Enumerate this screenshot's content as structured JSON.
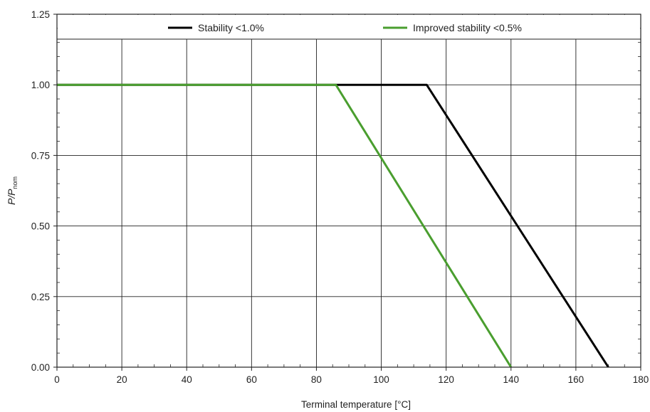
{
  "chart_data": {
    "type": "line",
    "title": "",
    "xlabel": "Terminal temperature [°C]",
    "ylabel": {
      "main": "P/P",
      "subscript": "nom"
    },
    "xlim": [
      0,
      180
    ],
    "ylim": [
      0,
      1.25
    ],
    "x_ticks": [
      0,
      20,
      40,
      60,
      80,
      100,
      120,
      140,
      160,
      180
    ],
    "y_ticks": [
      0.0,
      0.25,
      0.5,
      0.75,
      1.0,
      1.25
    ],
    "x_tick_labels": [
      "0",
      "20",
      "40",
      "60",
      "80",
      "100",
      "120",
      "140",
      "160",
      "180"
    ],
    "y_tick_labels": [
      "0.00",
      "0.25",
      "0.50",
      "0.75",
      "1.00",
      "1.25"
    ],
    "grid": true,
    "legend": {
      "placement": "top",
      "entries": [
        "Stability <1.0%",
        "Improved stability <0.5%"
      ]
    },
    "series": [
      {
        "name": "Stability <1.0%",
        "color": "#000000",
        "x": [
          0,
          114,
          170
        ],
        "y": [
          1.0,
          1.0,
          0.0
        ]
      },
      {
        "name": "Improved stability <0.5%",
        "color": "#4a9e2f",
        "x": [
          0,
          86,
          140
        ],
        "y": [
          1.0,
          1.0,
          0.0
        ]
      }
    ]
  }
}
